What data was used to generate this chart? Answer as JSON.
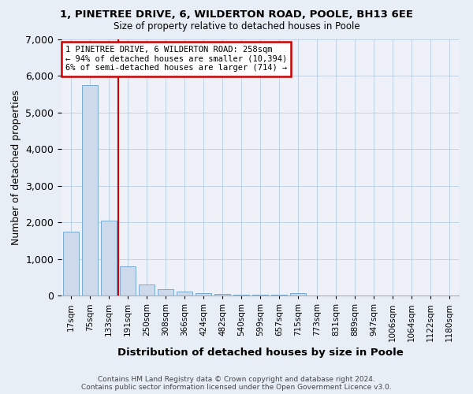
{
  "title1": "1, PINETREE DRIVE, 6, WILDERTON ROAD, POOLE, BH13 6EE",
  "title2": "Size of property relative to detached houses in Poole",
  "xlabel": "Distribution of detached houses by size in Poole",
  "ylabel": "Number of detached properties",
  "footer1": "Contains HM Land Registry data © Crown copyright and database right 2024.",
  "footer2": "Contains public sector information licensed under the Open Government Licence v3.0.",
  "annotation_line1": "1 PINETREE DRIVE, 6 WILDERTON ROAD: 258sqm",
  "annotation_line2": "← 94% of detached houses are smaller (10,394)",
  "annotation_line3": "6% of semi-detached houses are larger (714) →",
  "bar_color": "#ccdaeb",
  "bar_edge_color": "#7aaace",
  "vline_color": "#cc0000",
  "vline_x": 2.5,
  "categories": [
    "17sqm",
    "75sqm",
    "133sqm",
    "191sqm",
    "250sqm",
    "308sqm",
    "366sqm",
    "424sqm",
    "482sqm",
    "540sqm",
    "599sqm",
    "657sqm",
    "715sqm",
    "773sqm",
    "831sqm",
    "889sqm",
    "947sqm",
    "1006sqm",
    "1064sqm",
    "1122sqm",
    "1180sqm"
  ],
  "values": [
    1750,
    5750,
    2050,
    800,
    310,
    175,
    110,
    55,
    40,
    25,
    18,
    12,
    65,
    5,
    3,
    3,
    3,
    2,
    2,
    2,
    1
  ],
  "ylim": [
    0,
    7000
  ],
  "yticks": [
    0,
    1000,
    2000,
    3000,
    4000,
    5000,
    6000,
    7000
  ],
  "bg_color": "#e8eef5",
  "plot_bg_color": "#eef2f8"
}
